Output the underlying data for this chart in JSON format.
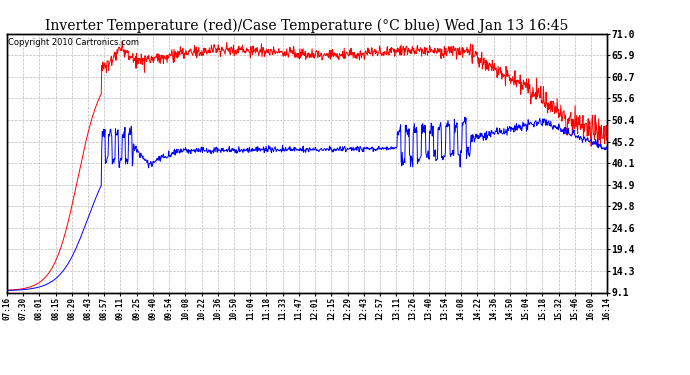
{
  "title": "Inverter Temperature (red)/Case Temperature (°C blue) Wed Jan 13 16:45",
  "copyright": "Copyright 2010 Cartronics.com",
  "ylabel_right_values": [
    71.0,
    65.9,
    60.7,
    55.6,
    50.4,
    45.2,
    40.1,
    34.9,
    29.8,
    24.6,
    19.4,
    14.3,
    9.1
  ],
  "ymin": 9.1,
  "ymax": 71.0,
  "x_labels": [
    "07:16",
    "07:30",
    "08:01",
    "08:15",
    "08:29",
    "08:43",
    "08:57",
    "09:11",
    "09:25",
    "09:40",
    "09:54",
    "10:08",
    "10:22",
    "10:36",
    "10:50",
    "11:04",
    "11:18",
    "11:33",
    "11:47",
    "12:01",
    "12:15",
    "12:29",
    "12:43",
    "12:57",
    "13:11",
    "13:26",
    "13:40",
    "13:54",
    "14:08",
    "14:22",
    "14:36",
    "14:50",
    "15:04",
    "15:18",
    "15:32",
    "15:46",
    "16:00",
    "16:14"
  ],
  "bg_color": "#ffffff",
  "plot_bg_color": "#ffffff",
  "grid_color": "#bbbbbb",
  "red_color": "#ff0000",
  "blue_color": "#0000ff",
  "title_fontsize": 10,
  "copyright_fontsize": 6
}
